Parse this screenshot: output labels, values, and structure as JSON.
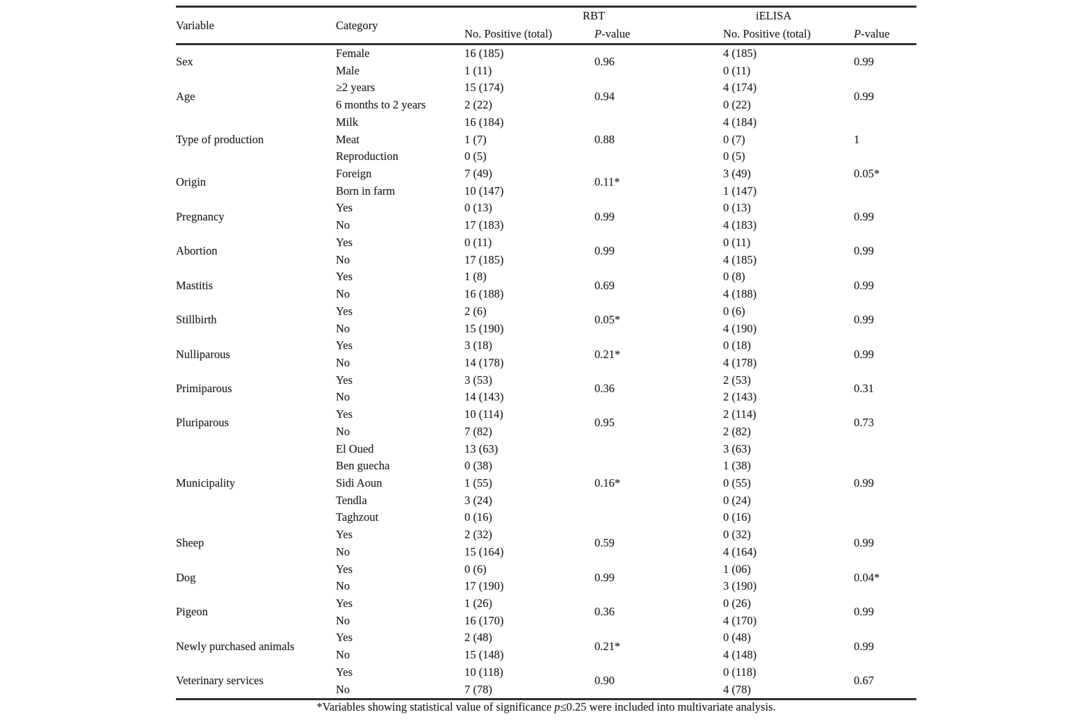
{
  "page": {
    "background": "#ffffff",
    "text_color": "#1f1f1f",
    "rule_color": "#2e2e2e"
  },
  "table": {
    "header": {
      "variable": "Variable",
      "category": "Category",
      "group_rbt": "RBT",
      "group_ielisa": "iELISA",
      "positive": "No. Positive (total)",
      "pvalue_p": "P",
      "pvalue_rest": "-value"
    },
    "groups": [
      {
        "variable": "Sex",
        "rbt_p": "0.96",
        "ielisa_p": "0.99",
        "rows": [
          {
            "category": "Female",
            "rbt": "16 (185)",
            "ielisa": "4 (185)"
          },
          {
            "category": "Male",
            "rbt": "1 (11)",
            "ielisa": "0 (11)"
          }
        ]
      },
      {
        "variable": "Age",
        "rbt_p": "0.94",
        "ielisa_p": "0.99",
        "rows": [
          {
            "category": "≥2 years",
            "rbt": "15 (174)",
            "ielisa": "4 (174)"
          },
          {
            "category": "6 months to 2 years",
            "rbt": "2 (22)",
            "ielisa": "0 (22)"
          }
        ]
      },
      {
        "variable": "Type of production",
        "rbt_p": "0.88",
        "ielisa_p": "1",
        "rows": [
          {
            "category": "Milk",
            "rbt": "16 (184)",
            "ielisa": "4 (184)"
          },
          {
            "category": "Meat",
            "rbt": "1 (7)",
            "ielisa": "0 (7)"
          },
          {
            "category": "Reproduction",
            "rbt": "0 (5)",
            "ielisa": "0 (5)"
          }
        ]
      },
      {
        "variable": "Origin",
        "rbt_p": "0.11*",
        "ielisa_p": "0.05*",
        "ielisa_p_align": "top",
        "rows": [
          {
            "category": "Foreign",
            "rbt": "7 (49)",
            "ielisa": "3 (49)"
          },
          {
            "category": "Born in farm",
            "rbt": "10 (147)",
            "ielisa": "1 (147)"
          }
        ]
      },
      {
        "variable": "Pregnancy",
        "rbt_p": "0.99",
        "ielisa_p": "0.99",
        "rows": [
          {
            "category": "Yes",
            "rbt": "0 (13)",
            "ielisa": "0 (13)"
          },
          {
            "category": "No",
            "rbt": "17 (183)",
            "ielisa": "4 (183)"
          }
        ]
      },
      {
        "variable": "Abortion",
        "rbt_p": "0.99",
        "ielisa_p": "0.99",
        "rows": [
          {
            "category": "Yes",
            "rbt": "0 (11)",
            "ielisa": "0 (11)"
          },
          {
            "category": "No",
            "rbt": "17 (185)",
            "ielisa": "4 (185)"
          }
        ]
      },
      {
        "variable": "Mastitis",
        "rbt_p": "0.69",
        "ielisa_p": "0.99",
        "rows": [
          {
            "category": "Yes",
            "rbt": "1 (8)",
            "ielisa": "0 (8)"
          },
          {
            "category": "No",
            "rbt": "16 (188)",
            "ielisa": "4 (188)"
          }
        ]
      },
      {
        "variable": "Stillbirth",
        "rbt_p": "0.05*",
        "ielisa_p": "0.99",
        "rows": [
          {
            "category": "Yes",
            "rbt": "2 (6)",
            "ielisa": "0 (6)"
          },
          {
            "category": "No",
            "rbt": "15 (190)",
            "ielisa": "4 (190)"
          }
        ]
      },
      {
        "variable": "Nulliparous",
        "rbt_p": "0.21*",
        "ielisa_p": "0.99",
        "rows": [
          {
            "category": "Yes",
            "rbt": "3 (18)",
            "ielisa": "0 (18)"
          },
          {
            "category": "No",
            "rbt": "14 (178)",
            "ielisa": "4 (178)"
          }
        ]
      },
      {
        "variable": "Primiparous",
        "rbt_p": "0.36",
        "ielisa_p": "0.31",
        "rows": [
          {
            "category": "Yes",
            "rbt": "3 (53)",
            "ielisa": "2 (53)"
          },
          {
            "category": "No",
            "rbt": "14 (143)",
            "ielisa": "2 (143)"
          }
        ]
      },
      {
        "variable": "Pluriparous",
        "rbt_p": "0.95",
        "ielisa_p": "0.73",
        "rows": [
          {
            "category": "Yes",
            "rbt": "10 (114)",
            "ielisa": "2 (114)"
          },
          {
            "category": "No",
            "rbt": "7 (82)",
            "ielisa": "2 (82)"
          }
        ]
      },
      {
        "variable": "Municipality",
        "rbt_p": "0.16*",
        "ielisa_p": "0.99",
        "rows": [
          {
            "category": "El Oued",
            "rbt": "13 (63)",
            "ielisa": "3 (63)"
          },
          {
            "category": "Ben guecha",
            "rbt": "0 (38)",
            "ielisa": "1 (38)"
          },
          {
            "category": "Sidi Aoun",
            "rbt": "1 (55)",
            "ielisa": "0 (55)"
          },
          {
            "category": "Tendla",
            "rbt": "3 (24)",
            "ielisa": "0 (24)"
          },
          {
            "category": "Taghzout",
            "rbt": "0 (16)",
            "ielisa": "0 (16)"
          }
        ]
      },
      {
        "variable": "Sheep",
        "rbt_p": "0.59",
        "ielisa_p": "0.99",
        "rows": [
          {
            "category": "Yes",
            "rbt": "2 (32)",
            "ielisa": "0 (32)"
          },
          {
            "category": "No",
            "rbt": "15 (164)",
            "ielisa": "4 (164)"
          }
        ]
      },
      {
        "variable": "Dog",
        "rbt_p": "0.99",
        "ielisa_p": "0.04*",
        "rows": [
          {
            "category": "Yes",
            "rbt": "0 (6)",
            "ielisa": "1 (06)"
          },
          {
            "category": "No",
            "rbt": "17 (190)",
            "ielisa": "3 (190)"
          }
        ]
      },
      {
        "variable": "Pigeon",
        "rbt_p": "0.36",
        "ielisa_p": "0.99",
        "rows": [
          {
            "category": "Yes",
            "rbt": "1 (26)",
            "ielisa": "0 (26)"
          },
          {
            "category": "No",
            "rbt": "16 (170)",
            "ielisa": "4 (170)"
          }
        ]
      },
      {
        "variable": "Newly purchased animals",
        "rbt_p": "0.21*",
        "ielisa_p": "0.99",
        "rows": [
          {
            "category": "Yes",
            "rbt": "2 (48)",
            "ielisa": "0 (48)"
          },
          {
            "category": "No",
            "rbt": "15 (148)",
            "ielisa": "4 (148)"
          }
        ]
      },
      {
        "variable": "Veterinary services",
        "rbt_p": "0.90",
        "ielisa_p": "0.67",
        "rows": [
          {
            "category": "Yes",
            "rbt": "10 (118)",
            "ielisa": "0 (118)"
          },
          {
            "category": "No",
            "rbt": "7 (78)",
            "ielisa": "4 (78)"
          }
        ]
      }
    ],
    "footnote": {
      "prefix": "*Variables showing statistical value of significance ",
      "italic": "p",
      "suffix": "≤0.25 were included into multivariate analysis."
    }
  }
}
